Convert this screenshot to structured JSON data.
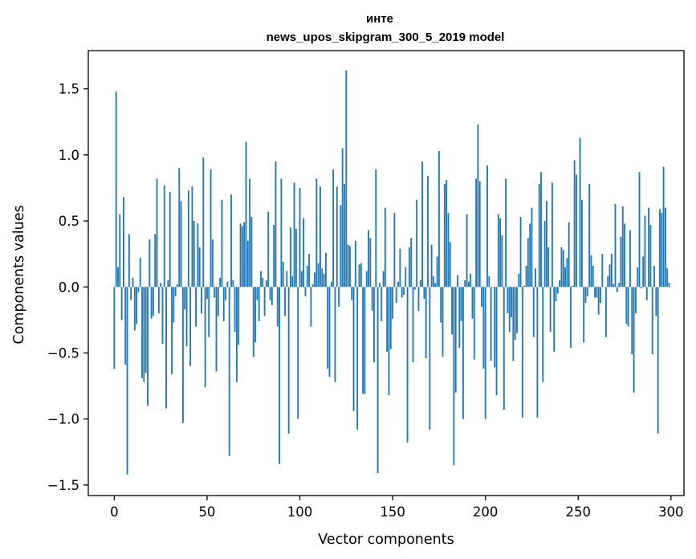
{
  "chart_data": {
    "type": "bar",
    "title_line1": "инте",
    "title_line2": "news_upos_skipgram_300_5_2019 model",
    "xlabel": "Vector components",
    "ylabel": "Components values",
    "xlim": [
      -14,
      307
    ],
    "ylim": [
      -1.58,
      1.79
    ],
    "x_ticks": [
      0,
      50,
      100,
      150,
      200,
      250,
      300
    ],
    "y_ticks": [
      -1.5,
      -1.0,
      -0.5,
      0.0,
      0.5,
      1.0,
      1.5
    ],
    "y_tick_labels": [
      "−1.5",
      "−1.0",
      "−0.5",
      "0.0",
      "0.5",
      "1.0",
      "1.5"
    ],
    "grid": false,
    "x": "0..299",
    "values": [
      -0.62,
      1.48,
      0.15,
      0.55,
      -0.25,
      0.68,
      -0.59,
      -1.42,
      0.4,
      -0.1,
      0.07,
      -0.33,
      -0.28,
      -0.04,
      0.22,
      -0.69,
      -0.72,
      -0.65,
      -0.9,
      0.36,
      -0.24,
      -0.22,
      0.4,
      0.82,
      -0.2,
      0.03,
      -0.43,
      0.77,
      -0.92,
      0.05,
      0.72,
      -0.66,
      -0.27,
      -0.07,
      0.02,
      0.9,
      0.65,
      -1.03,
      -0.17,
      -0.45,
      0.73,
      -0.6,
      0.76,
      0.5,
      -0.3,
      0.48,
      0.3,
      -0.2,
      0.98,
      -0.76,
      -0.09,
      -0.38,
      0.89,
      0.36,
      -0.08,
      -0.64,
      -0.22,
      0.07,
      0.66,
      -0.26,
      -0.1,
      0.04,
      -1.28,
      0.7,
      0.05,
      -0.34,
      -0.72,
      -0.44,
      0.48,
      0.46,
      0.49,
      1.1,
      0.35,
      0.82,
      0.53,
      -0.53,
      -0.42,
      -0.1,
      -0.26,
      0.12,
      0.07,
      -0.22,
      0.05,
      0.57,
      -0.1,
      -0.14,
      0.47,
      0.95,
      -0.3,
      -1.34,
      0.82,
      0.19,
      -0.22,
      0.12,
      -1.11,
      0.45,
      0.08,
      0.79,
      0.44,
      -1.0,
      0.75,
      0.12,
      0.52,
      -0.07,
      0.16,
      0.25,
      -0.3,
      0.02,
      0.11,
      0.82,
      0.18,
      0.76,
      0.14,
      0.1,
      0.26,
      -0.62,
      -0.68,
      0.04,
      0.89,
      -0.72,
      0.76,
      -0.15,
      0.62,
      1.05,
      0.78,
      1.64,
      0.32,
      0.31,
      -0.1,
      -0.94,
      0.35,
      -1.08,
      0.17,
      0.18,
      -0.81,
      -0.81,
      0.12,
      0.43,
      0.37,
      -0.18,
      -0.57,
      0.89,
      -1.41,
      0.03,
      -0.26,
      0.12,
      0.6,
      -0.49,
      -0.82,
      -0.47,
      -0.24,
      0.56,
      -0.12,
      0.04,
      0.29,
      -0.08,
      -0.06,
      0.15,
      -1.18,
      0.3,
      0.37,
      -0.57,
      -0.02,
      0.66,
      -0.18,
      0.05,
      0.95,
      -0.09,
      -0.54,
      0.84,
      -1.08,
      0.32,
      0.08,
      0.03,
      0.23,
      1.03,
      -0.27,
      -0.53,
      0.78,
      0.81,
      0.56,
      0.34,
      -0.36,
      -1.35,
      -0.8,
      0.09,
      -0.46,
      -0.26,
      -1.0,
      0.05,
      0.55,
      0.04,
      0.1,
      -0.24,
      -0.55,
      0.82,
      1.23,
      0.8,
      -0.15,
      -0.62,
      -1.0,
      0.92,
      0.08,
      -0.56,
      0.0,
      -0.61,
      -0.82,
      0.55,
      0.52,
      0.39,
      -0.93,
      0.82,
      -0.2,
      -0.34,
      -0.23,
      -0.56,
      -0.4,
      -0.35,
      0.1,
      0.53,
      -0.99,
      0.01,
      0.16,
      0.37,
      0.48,
      0.6,
      -0.38,
      0.14,
      -0.99,
      0.78,
      0.87,
      -0.72,
      0.5,
      0.65,
      0.3,
      -0.34,
      0.79,
      -0.49,
      -0.11,
      -0.05,
      0.05,
      0.3,
      0.28,
      0.15,
      0.22,
      0.49,
      -0.46,
      0.01,
      0.96,
      0.85,
      0.0,
      1.13,
      0.66,
      -0.42,
      -0.12,
      -0.07,
      0.78,
      0.24,
      0.16,
      -0.08,
      -0.08,
      -0.21,
      -0.12,
      0.25,
      0.0,
      -0.38,
      0.08,
      0.17,
      0.25,
      0.02,
      0.63,
      -0.04,
      0.03,
      0.38,
      0.61,
      0.48,
      -0.28,
      -0.3,
      0.43,
      -0.51,
      -0.8,
      -0.2,
      0.15,
      0.87,
      -0.01,
      0.23,
      0.54,
      -0.1,
      0.6,
      0.47,
      -0.51,
      0.16,
      -0.22,
      -1.11,
      0.59,
      0.56,
      0.91,
      0.6,
      0.14,
      0.03
    ],
    "color": "#1f77b4"
  }
}
